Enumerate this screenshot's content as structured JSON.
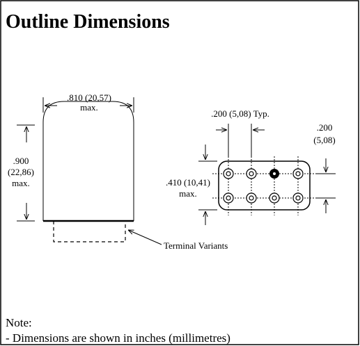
{
  "header": {
    "title": "Outline Dimensions"
  },
  "left_view": {
    "width_label": ".810 (20,57)",
    "width_note": "max.",
    "height_label": ".900",
    "height_metric": "(22,86)",
    "height_note": "max.",
    "terminal_label": "Terminal Variants"
  },
  "right_view": {
    "pitch_label": ".200 (5,08) Typ.",
    "row_pitch_label": ".200",
    "row_pitch_metric": "(5,08)",
    "height_label": ".410 (10,41)",
    "height_note": "max."
  },
  "note": {
    "heading": "Note:",
    "lines": [
      "- Dimensions are shown in inches (millimetres)"
    ]
  }
}
